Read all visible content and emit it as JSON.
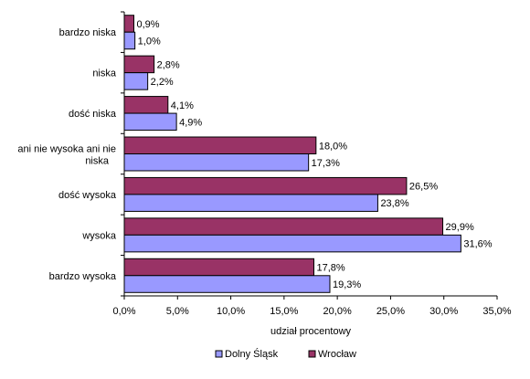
{
  "chart_data": {
    "type": "bar",
    "orientation": "horizontal",
    "categories": [
      "bardzo niska",
      "niska",
      "dość niska",
      "ani nie wysoka ani nie niska",
      "dość wysoka",
      "wysoka",
      "bardzo wysoka"
    ],
    "series": [
      {
        "name": "Wrocław",
        "color": "#993366",
        "values": [
          0.9,
          2.8,
          4.1,
          18.0,
          26.5,
          29.9,
          17.8
        ],
        "labels": [
          "0,9%",
          "2,8%",
          "4,1%",
          "18,0%",
          "26,5%",
          "29,9%",
          "17,8%"
        ]
      },
      {
        "name": "Dolny Śląsk",
        "color": "#9999ff",
        "values": [
          1.0,
          2.2,
          4.9,
          17.3,
          23.8,
          31.6,
          19.3
        ],
        "labels": [
          "1,0%",
          "2,2%",
          "4,9%",
          "17,3%",
          "23,8%",
          "31,6%",
          "19,3%"
        ]
      }
    ],
    "xlim": [
      0,
      35
    ],
    "xticks": [
      0,
      5,
      10,
      15,
      20,
      25,
      30,
      35
    ],
    "xtick_labels": [
      "0,0%",
      "5,0%",
      "10,0%",
      "15,0%",
      "20,0%",
      "25,0%",
      "30,0%",
      "35,0%"
    ],
    "xlabel": "udział procentowy",
    "ylabel": "",
    "title": "",
    "legend": {
      "placement": "bottom",
      "order": [
        "Dolny Śląsk",
        "Wrocław"
      ]
    },
    "grid": false
  }
}
